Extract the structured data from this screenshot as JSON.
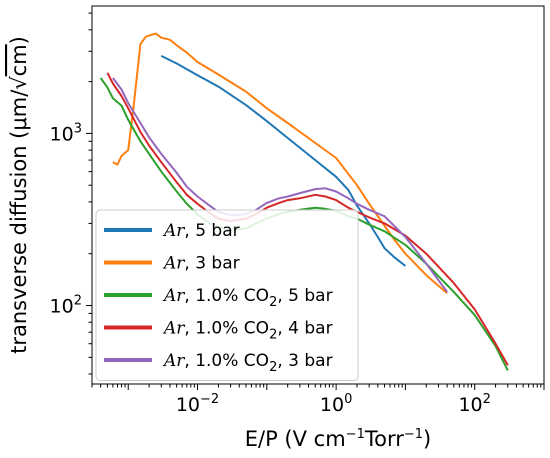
{
  "chart_data": {
    "type": "line",
    "xlabel_base": "E/P (V cm",
    "xlabel_sup1": "−1",
    "xlabel_mid": "Torr",
    "xlabel_sup2": "−1",
    "xlabel_end": ")",
    "ylabel_base": "transverse diffusion (μm/",
    "ylabel_sqrt": "√",
    "ylabel_cm": "cm",
    "ylabel_end": ")",
    "xscale": "log",
    "yscale": "log",
    "xlim": [
      0.0003,
      1000
    ],
    "ylim": [
      35,
      5500
    ],
    "xticks": [
      {
        "base": "10",
        "exp": "−2",
        "value": 0.01
      },
      {
        "base": "10",
        "exp": "0",
        "value": 1
      },
      {
        "base": "10",
        "exp": "2",
        "value": 100
      }
    ],
    "yticks": [
      {
        "base": "10",
        "exp": "2",
        "value": 100
      },
      {
        "base": "10",
        "exp": "3",
        "value": 1000
      }
    ],
    "legend_position": "lower-left",
    "grid": false,
    "series": [
      {
        "name_italic": "Ar",
        "name_rest": ", 5 bar",
        "color": "#1f77b4",
        "x": [
          0.003,
          0.005,
          0.01,
          0.02,
          0.05,
          0.1,
          0.2,
          0.5,
          1.0,
          1.5,
          2.0,
          3.0,
          4.0,
          5.0,
          7.0,
          10
        ],
        "y": [
          2820,
          2550,
          2180,
          1870,
          1460,
          1180,
          940,
          700,
          560,
          470,
          380,
          300,
          250,
          215,
          190,
          170
        ]
      },
      {
        "name_italic": "Ar",
        "name_rest": ", 3 bar",
        "color": "#ff7f0e",
        "x": [
          0.0006,
          0.0007,
          0.0008,
          0.001,
          0.0012,
          0.0015,
          0.0018,
          0.002,
          0.0025,
          0.003,
          0.004,
          0.005,
          0.007,
          0.01,
          0.02,
          0.05,
          0.1,
          0.2,
          0.5,
          1.0,
          2.0,
          3.0,
          5.0,
          7.0,
          10,
          20,
          40
        ],
        "y": [
          680,
          660,
          740,
          800,
          1450,
          3300,
          3650,
          3700,
          3800,
          3600,
          3500,
          3250,
          2950,
          2600,
          2200,
          1750,
          1400,
          1150,
          880,
          720,
          500,
          390,
          290,
          240,
          200,
          150,
          118
        ]
      },
      {
        "name_italic": "Ar",
        "name_rest": ", 1.0% CO",
        "name_sub": "2",
        "name_tail": ", 5 bar",
        "color": "#2ca02c",
        "x": [
          0.0004,
          0.0005,
          0.0006,
          0.0008,
          0.001,
          0.0015,
          0.002,
          0.003,
          0.005,
          0.007,
          0.01,
          0.015,
          0.02,
          0.03,
          0.05,
          0.07,
          0.1,
          0.15,
          0.2,
          0.3,
          0.5,
          0.7,
          1.0,
          1.5,
          2.0,
          3.0,
          5.0,
          10,
          20,
          50,
          100,
          200,
          300
        ],
        "y": [
          2100,
          1850,
          1600,
          1450,
          1200,
          900,
          760,
          600,
          460,
          390,
          340,
          300,
          285,
          275,
          280,
          300,
          320,
          340,
          350,
          360,
          370,
          365,
          355,
          330,
          320,
          295,
          270,
          225,
          175,
          120,
          88,
          58,
          42
        ]
      },
      {
        "name_italic": "Ar",
        "name_rest": ", 1.0% CO",
        "name_sub": "2",
        "name_tail": ", 4 bar",
        "color": "#d62728",
        "x": [
          0.0005,
          0.0006,
          0.0008,
          0.001,
          0.0015,
          0.002,
          0.003,
          0.005,
          0.007,
          0.01,
          0.015,
          0.02,
          0.03,
          0.05,
          0.07,
          0.1,
          0.15,
          0.2,
          0.3,
          0.5,
          0.7,
          1.0,
          1.5,
          2.0,
          3.0,
          5.0,
          10,
          20,
          50,
          100,
          200,
          300
        ],
        "y": [
          2250,
          1950,
          1650,
          1400,
          1020,
          850,
          680,
          520,
          440,
          390,
          345,
          320,
          310,
          320,
          340,
          370,
          395,
          410,
          420,
          440,
          430,
          410,
          370,
          350,
          325,
          300,
          255,
          200,
          135,
          95,
          60,
          45
        ]
      },
      {
        "name_italic": "Ar",
        "name_rest": ", 1.0% CO",
        "name_sub": "2",
        "name_tail": ", 3 bar",
        "color": "#9467bd",
        "x": [
          0.0006,
          0.0008,
          0.001,
          0.0015,
          0.002,
          0.003,
          0.005,
          0.007,
          0.01,
          0.015,
          0.02,
          0.03,
          0.05,
          0.07,
          0.1,
          0.15,
          0.2,
          0.3,
          0.5,
          0.7,
          1.0,
          1.5,
          2.0,
          3.0,
          5.0,
          10,
          20,
          40
        ],
        "y": [
          2100,
          1800,
          1500,
          1150,
          950,
          760,
          590,
          490,
          430,
          380,
          350,
          335,
          340,
          360,
          395,
          420,
          430,
          450,
          475,
          480,
          460,
          420,
          390,
          360,
          330,
          250,
          175,
          120
        ]
      }
    ]
  }
}
